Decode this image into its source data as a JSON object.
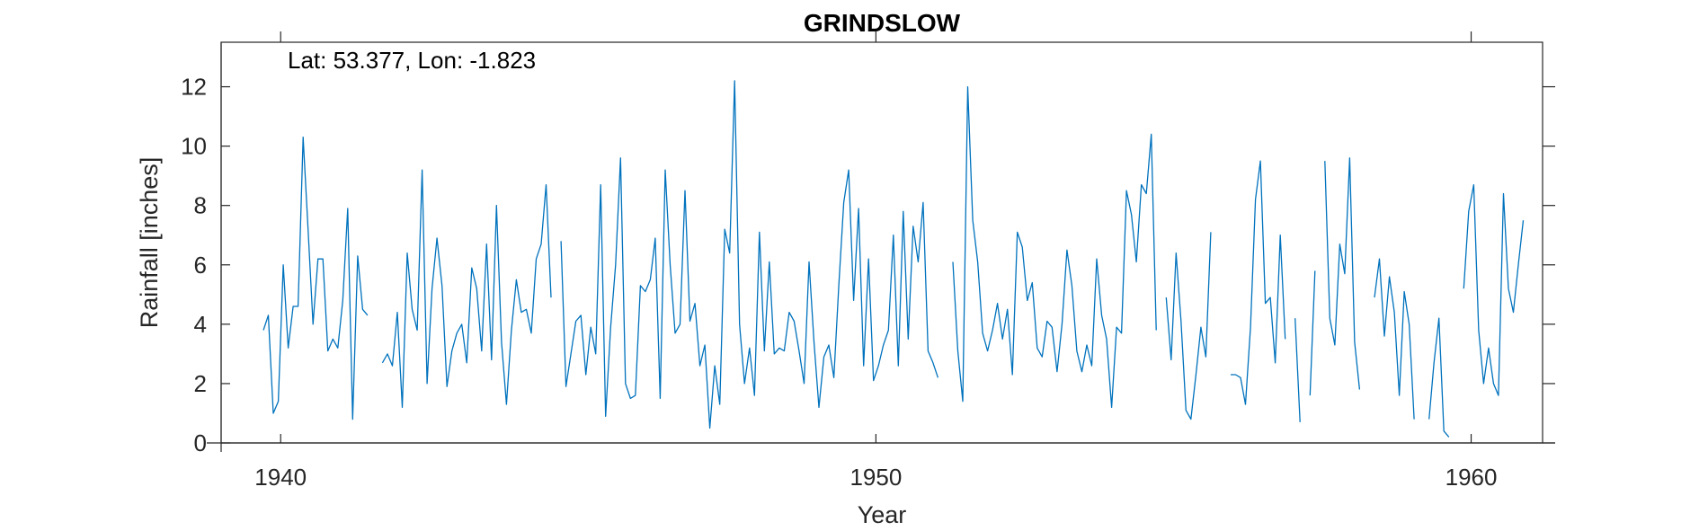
{
  "chart_data": {
    "type": "line",
    "title": "GRINDSLOW",
    "annotation": "Lat: 53.377, Lon: -1.823",
    "xlabel": "Year",
    "ylabel": "Rainfall [inches]",
    "xlim": [
      1939,
      1961.2
    ],
    "ylim": [
      0,
      13.5
    ],
    "xticks": [
      1940,
      1950,
      1960
    ],
    "yticks": [
      0,
      2,
      4,
      6,
      8,
      10,
      12
    ],
    "grid": false,
    "legend": "none",
    "line_color": "#0072BD",
    "series": [
      {
        "start": 1939.71,
        "step": 0.08333,
        "values": [
          3.8,
          4.3,
          1.0,
          1.4,
          6.0,
          3.2,
          4.6,
          4.6,
          10.3,
          7.2,
          4.0,
          6.2,
          6.2,
          3.1,
          3.5,
          3.2,
          4.8,
          7.9,
          0.8,
          6.3,
          4.5,
          4.3,
          null,
          null,
          2.7,
          3.0,
          2.6,
          4.4,
          1.2,
          6.4,
          4.5,
          3.8,
          9.2,
          2.0,
          5.2,
          6.9,
          5.3,
          1.9,
          3.1,
          3.7,
          4.0,
          2.7,
          5.9,
          5.2,
          3.1,
          6.7,
          2.8,
          8.0,
          3.4,
          1.3,
          3.8,
          5.5,
          4.4,
          4.5,
          3.7,
          6.2,
          6.7,
          8.7,
          4.9,
          null,
          6.8,
          1.9,
          3.0,
          4.1,
          4.3,
          2.3,
          3.9,
          3.0,
          8.7,
          0.9,
          3.9,
          6.0,
          9.6,
          2.0,
          1.5,
          1.6,
          5.3,
          5.1,
          5.5,
          6.9,
          1.5,
          9.2,
          6.0,
          3.7,
          4.0,
          8.5,
          4.1,
          4.7,
          2.6,
          3.3,
          0.5,
          2.6,
          1.3,
          7.2,
          6.4,
          12.2,
          4.0,
          2.0,
          3.2,
          1.6,
          7.1,
          3.1,
          6.1,
          3.0,
          3.2,
          3.1,
          4.4,
          4.1,
          3.1,
          2.0,
          6.1,
          3.4,
          1.2,
          2.9,
          3.3,
          2.2,
          5.3,
          8.1,
          9.2,
          4.8,
          7.9,
          2.6,
          6.2,
          2.1,
          2.6,
          3.3,
          3.8,
          7.0,
          2.6,
          7.8,
          3.5,
          7.3,
          6.1,
          8.1,
          3.1,
          2.7,
          2.2,
          null,
          null,
          6.1,
          3.1,
          1.4,
          12.0,
          7.5,
          6.1,
          3.7,
          3.1,
          3.8,
          4.7,
          3.5,
          4.5,
          2.3,
          7.1,
          6.6,
          4.8,
          5.4,
          3.2,
          2.9,
          4.1,
          3.9,
          2.4,
          4.0,
          6.5,
          5.3,
          3.1,
          2.4,
          3.3,
          2.6,
          6.2,
          4.3,
          3.5,
          1.2,
          3.9,
          3.7,
          8.5,
          7.7,
          6.1,
          8.7,
          8.4,
          10.4,
          3.8,
          null,
          4.9,
          2.8,
          6.4,
          4.1,
          1.1,
          0.8,
          2.3,
          3.9,
          2.9,
          7.1,
          null,
          null,
          null,
          2.3,
          2.3,
          2.2,
          1.3,
          3.9,
          8.2,
          9.5,
          4.7,
          4.9,
          2.7,
          7.0,
          3.5,
          null,
          4.2,
          0.7,
          null,
          1.6,
          5.8,
          null,
          9.5,
          4.2,
          3.3,
          6.7,
          5.7,
          9.6,
          3.4,
          1.8,
          null,
          null,
          4.9,
          6.2,
          3.6,
          5.6,
          4.4,
          1.6,
          5.1,
          4.0,
          0.8,
          null,
          null,
          0.8,
          2.7,
          4.2,
          0.4,
          0.2,
          null,
          null,
          5.2,
          7.8,
          8.7,
          3.8,
          2.0,
          3.2,
          2.0,
          1.6,
          8.4,
          5.2,
          4.4,
          6.0,
          7.5
        ]
      }
    ]
  }
}
